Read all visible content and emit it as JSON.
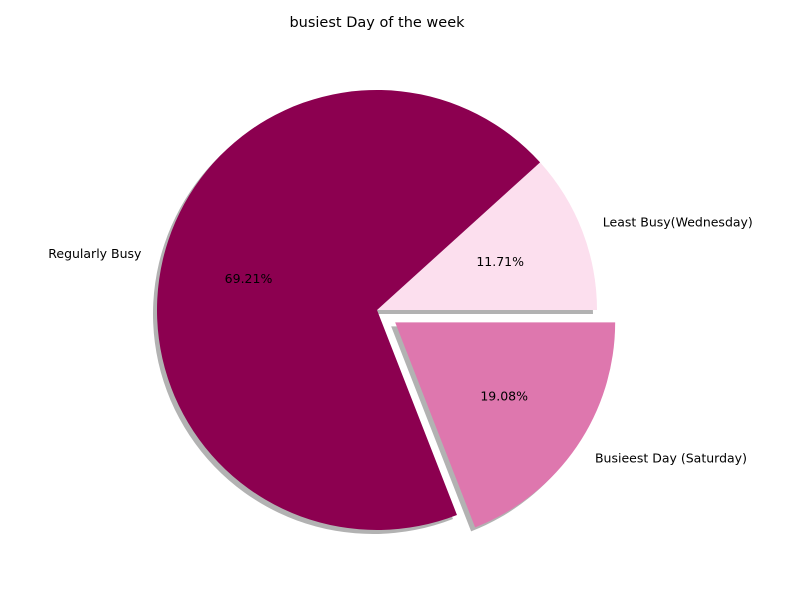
{
  "chart_data": {
    "type": "pie",
    "title": "busiest Day of the week",
    "slices": [
      {
        "label": "Least Busy(Wednesday)",
        "value": 11.71,
        "pct_label": "11.71%",
        "color": "#fcdfee",
        "explode": false
      },
      {
        "label": "Regularly Busy",
        "value": 69.21,
        "pct_label": "69.21%",
        "color": "#8c0050",
        "explode": false
      },
      {
        "label": "Busieest Day (Saturday)",
        "value": 19.08,
        "pct_label": "19.08%",
        "color": "#de77ae",
        "explode": true
      }
    ],
    "start_angle_deg": 0,
    "direction": "counterclockwise",
    "shadow": true
  }
}
